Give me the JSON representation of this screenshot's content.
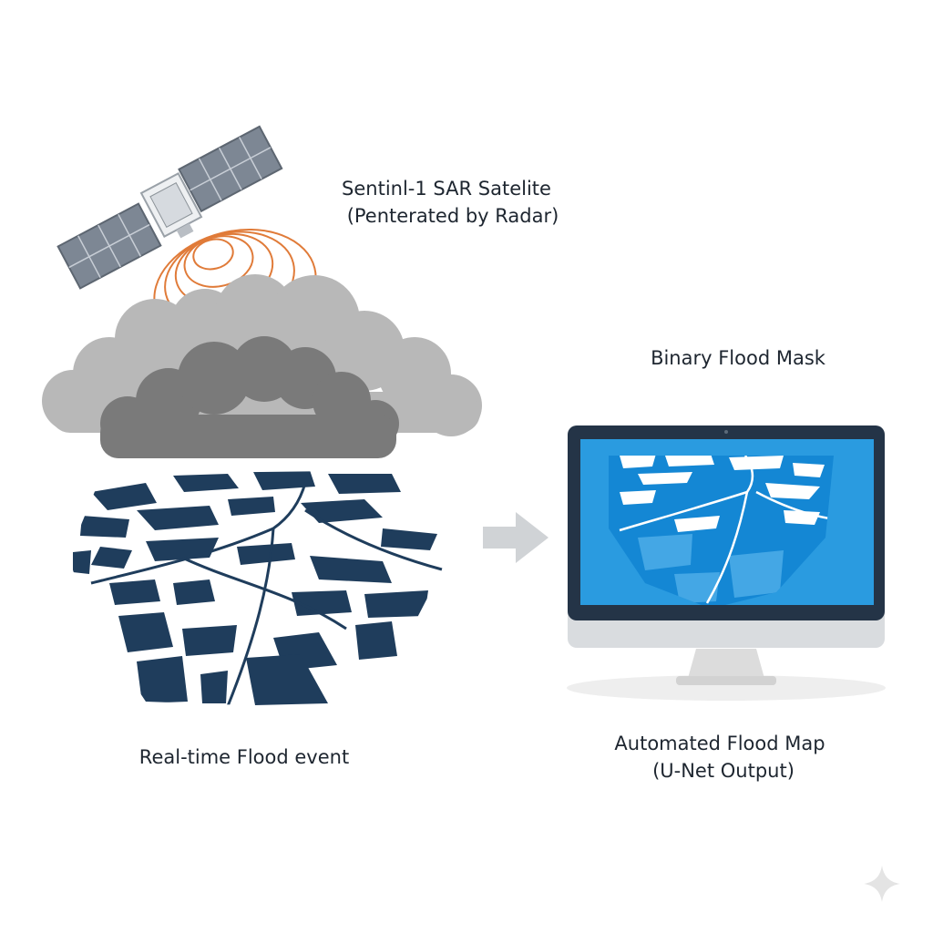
{
  "satellite": {
    "line1": "Sentinl-1 SAR Satelite",
    "line2": "(Penterated by Radar)",
    "icon": "satellite-icon"
  },
  "mask": {
    "title": "Binary Flood Mask"
  },
  "flood_event": {
    "label": "Real-time Flood event"
  },
  "output": {
    "line1": "Automated Flood Map",
    "line2": "(U-Net Output)"
  },
  "colors": {
    "radar": "#e07b39",
    "cloud_light": "#b5b5b5",
    "cloud_dark": "#777777",
    "water": "#1f3d5c",
    "screen_blue": "#2a9be0",
    "monitor_bezel": "#243447",
    "arrow": "#d0d3d6"
  }
}
